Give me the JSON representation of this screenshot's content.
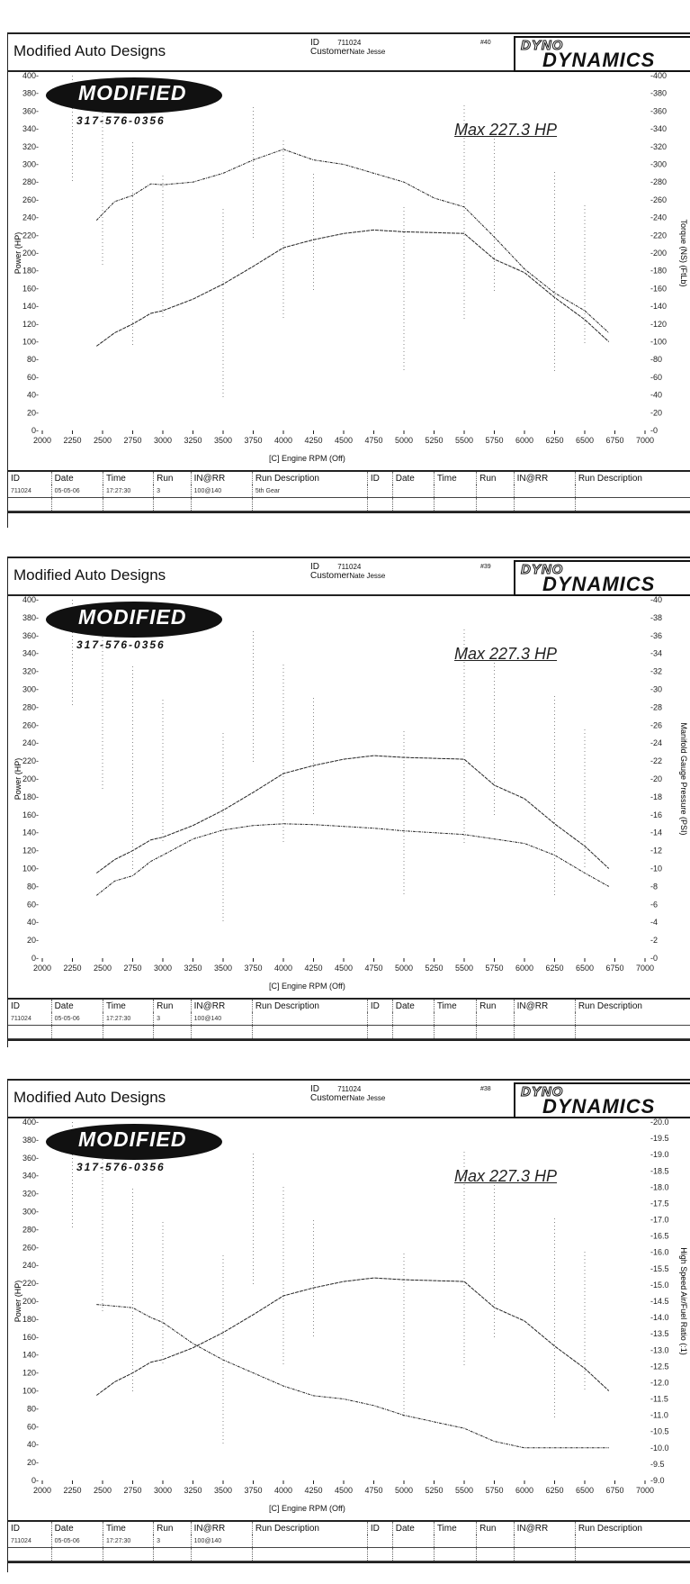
{
  "sheets": [
    {
      "shop": "Modified Auto Designs",
      "id_label": "ID",
      "id_value": "711024",
      "customer_label": "Customer",
      "customer_value": "Nate Jesse",
      "run_no": "#40",
      "dyno_brand_top": "DYNO",
      "dyno_brand": "DYNAMICS",
      "logo_text": "MODIFIED",
      "logo_phone": "317-576-0356",
      "max_label": "Max 227.3 HP",
      "y_left_label": "Power (HP)",
      "y_right_label": "Torque (NS) (FtLb)",
      "x_label": "[C] Engine RPM (Off)",
      "table": {
        "headers": [
          "ID",
          "Date",
          "Time",
          "Run",
          "IN@RR",
          "Run Description",
          "ID",
          "Date",
          "Time",
          "Run",
          "IN@RR",
          "Run Description"
        ],
        "row": [
          "711024",
          "05-05-06",
          "17:27:30",
          "3",
          "100@140",
          "5th Gear",
          "",
          "",
          "",
          "",
          "",
          ""
        ]
      }
    },
    {
      "shop": "Modified Auto Designs",
      "id_label": "ID",
      "id_value": "711024",
      "customer_label": "Customer",
      "customer_value": "Nate Jesse",
      "run_no": "#39",
      "dyno_brand_top": "DYNO",
      "dyno_brand": "DYNAMICS",
      "logo_text": "MODIFIED",
      "logo_phone": "317-576-0356",
      "max_label": "Max 227.3 HP",
      "y_left_label": "Power (HP)",
      "y_right_label": "Manifold Gauge Pressure (PSI)",
      "x_label": "[C] Engine RPM (Off)",
      "table": {
        "headers": [
          "ID",
          "Date",
          "Time",
          "Run",
          "IN@RR",
          "Run Description",
          "ID",
          "Date",
          "Time",
          "Run",
          "IN@RR",
          "Run Description"
        ],
        "row": [
          "711024",
          "05-05-06",
          "17:27:30",
          "3",
          "100@140",
          "",
          "",
          "",
          "",
          "",
          "",
          ""
        ]
      }
    },
    {
      "shop": "Modified Auto Designs",
      "id_label": "ID",
      "id_value": "711024",
      "customer_label": "Customer",
      "customer_value": "Nate Jesse",
      "run_no": "#38",
      "dyno_brand_top": "DYNO",
      "dyno_brand": "DYNAMICS",
      "logo_text": "MODIFIED",
      "logo_phone": "317-576-0356",
      "max_label": "Max 227.3 HP",
      "y_left_label": "Power (HP)",
      "y_right_label": "High Speed Air/Fuel Ratio (:1)",
      "x_label": "[C] Engine RPM (Off)",
      "table": {
        "headers": [
          "ID",
          "Date",
          "Time",
          "Run",
          "IN@RR",
          "Run Description",
          "ID",
          "Date",
          "Time",
          "Run",
          "IN@RR",
          "Run Description"
        ],
        "row": [
          "711024",
          "05-05-06",
          "17:27:30",
          "3",
          "100@140",
          "",
          "",
          "",
          "",
          "",
          "",
          ""
        ]
      }
    }
  ],
  "chart_data": [
    {
      "type": "line",
      "title": "Max 227.3 HP",
      "xlabel": "[C] Engine RPM (Off)",
      "ylabel": "Power (HP)",
      "y2label": "Torque (NS) (FtLb)",
      "x_ticks": [
        2000,
        2250,
        2500,
        2750,
        3000,
        3250,
        3500,
        3750,
        4000,
        4250,
        4500,
        4750,
        5000,
        5250,
        5500,
        5750,
        6000,
        6250,
        6500,
        6750,
        7000
      ],
      "ylim": [
        0,
        400
      ],
      "y_ticks": [
        0,
        20,
        40,
        60,
        80,
        100,
        120,
        140,
        160,
        180,
        200,
        220,
        240,
        260,
        280,
        300,
        320,
        340,
        360,
        380,
        400
      ],
      "y2lim": [
        0,
        400
      ],
      "y2_ticks": [
        0,
        20,
        40,
        60,
        80,
        100,
        120,
        140,
        160,
        180,
        200,
        220,
        240,
        260,
        280,
        300,
        320,
        340,
        360,
        380,
        400
      ],
      "x": [
        2450,
        2600,
        2750,
        2900,
        3000,
        3250,
        3500,
        3750,
        4000,
        4250,
        4500,
        4750,
        5000,
        5250,
        5500,
        5750,
        6000,
        6250,
        6500,
        6700
      ],
      "series": [
        {
          "name": "Power (HP)",
          "axis": "left",
          "values": [
            95,
            110,
            120,
            132,
            135,
            148,
            165,
            185,
            206,
            215,
            222,
            226,
            224,
            223,
            222,
            193,
            178,
            150,
            125,
            100
          ]
        },
        {
          "name": "Torque (FtLb)",
          "axis": "right",
          "values": [
            237,
            258,
            265,
            278,
            277,
            280,
            290,
            305,
            317,
            305,
            300,
            290,
            280,
            262,
            252,
            218,
            182,
            155,
            135,
            110
          ]
        }
      ]
    },
    {
      "type": "line",
      "title": "Max 227.3 HP",
      "xlabel": "[C] Engine RPM (Off)",
      "ylabel": "Power (HP)",
      "y2label": "Manifold Gauge Pressure (PSI)",
      "x_ticks": [
        2000,
        2250,
        2500,
        2750,
        3000,
        3250,
        3500,
        3750,
        4000,
        4250,
        4500,
        4750,
        5000,
        5250,
        5500,
        5750,
        6000,
        6250,
        6500,
        6750,
        7000
      ],
      "ylim": [
        0,
        400
      ],
      "y_ticks": [
        0,
        20,
        40,
        60,
        80,
        100,
        120,
        140,
        160,
        180,
        200,
        220,
        240,
        260,
        280,
        300,
        320,
        340,
        360,
        380,
        400
      ],
      "y2lim": [
        0,
        40
      ],
      "y2_ticks": [
        0,
        2,
        4,
        6,
        8,
        10,
        12,
        14,
        16,
        18,
        20,
        22,
        24,
        26,
        28,
        30,
        32,
        34,
        36,
        38,
        40
      ],
      "x": [
        2450,
        2600,
        2750,
        2900,
        3000,
        3250,
        3500,
        3750,
        4000,
        4250,
        4500,
        4750,
        5000,
        5250,
        5500,
        5750,
        6000,
        6250,
        6500,
        6700
      ],
      "series": [
        {
          "name": "Power (HP)",
          "axis": "left",
          "values": [
            95,
            110,
            120,
            132,
            135,
            148,
            165,
            185,
            206,
            215,
            222,
            226,
            224,
            223,
            222,
            193,
            178,
            150,
            125,
            100
          ]
        },
        {
          "name": "Manifold Pressure (PSI)",
          "axis": "right",
          "values": [
            7.0,
            8.6,
            9.2,
            10.8,
            11.5,
            13.3,
            14.3,
            14.8,
            15.0,
            14.9,
            14.7,
            14.5,
            14.2,
            14.0,
            13.8,
            13.3,
            12.8,
            11.5,
            9.5,
            8.0
          ]
        }
      ]
    },
    {
      "type": "line",
      "title": "Max 227.3 HP",
      "xlabel": "[C] Engine RPM (Off)",
      "ylabel": "Power (HP)",
      "y2label": "High Speed Air/Fuel Ratio (:1)",
      "x_ticks": [
        2000,
        2250,
        2500,
        2750,
        3000,
        3250,
        3500,
        3750,
        4000,
        4250,
        4500,
        4750,
        5000,
        5250,
        5500,
        5750,
        6000,
        6250,
        6500,
        6750,
        7000
      ],
      "ylim": [
        0,
        400
      ],
      "y_ticks": [
        0,
        20,
        40,
        60,
        80,
        100,
        120,
        140,
        160,
        180,
        200,
        220,
        240,
        260,
        280,
        300,
        320,
        340,
        360,
        380,
        400
      ],
      "y2lim": [
        9.0,
        20.0
      ],
      "y2_ticks": [
        9.0,
        9.5,
        10.0,
        10.5,
        11.0,
        11.5,
        12.0,
        12.5,
        13.0,
        13.5,
        14.0,
        14.5,
        15.0,
        15.5,
        16.0,
        16.5,
        17.0,
        17.5,
        18.0,
        18.5,
        19.0,
        19.5,
        20.0
      ],
      "x": [
        2450,
        2600,
        2750,
        2900,
        3000,
        3250,
        3500,
        3750,
        4000,
        4250,
        4500,
        4750,
        5000,
        5250,
        5500,
        5750,
        6000,
        6250,
        6500,
        6700
      ],
      "series": [
        {
          "name": "Power (HP)",
          "axis": "left",
          "values": [
            95,
            110,
            120,
            132,
            135,
            148,
            165,
            185,
            206,
            215,
            222,
            226,
            224,
            223,
            222,
            193,
            178,
            150,
            125,
            100
          ]
        },
        {
          "name": "Air/Fuel Ratio",
          "axis": "right",
          "values": [
            14.4,
            14.35,
            14.3,
            14.0,
            13.85,
            13.2,
            12.7,
            12.3,
            11.9,
            11.6,
            11.5,
            11.3,
            11.0,
            10.8,
            10.6,
            10.2,
            10.0,
            10.0,
            10.0,
            10.0
          ]
        }
      ]
    }
  ]
}
